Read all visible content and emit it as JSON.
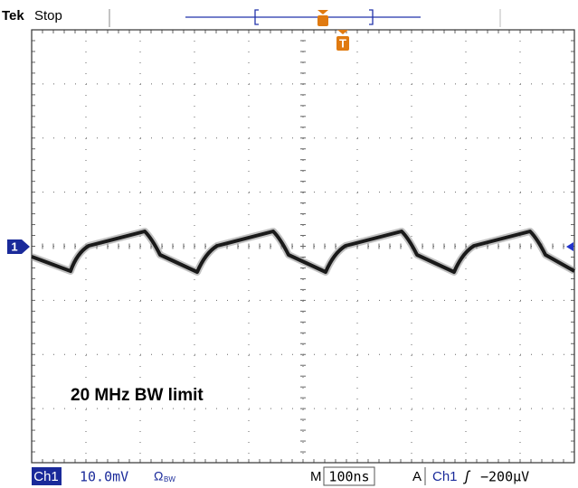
{
  "header": {
    "brand": "Tek",
    "status": "Stop",
    "trigger_marker": "T"
  },
  "channel_marker": "1",
  "annotation": "20 MHz BW limit",
  "footer": {
    "channel": "Ch1",
    "scale": "10.0mV",
    "impedance": "Ω",
    "bw_flag": "BW",
    "timebase_label": "M",
    "timebase": "100ns",
    "trigger_label": "A",
    "trigger_source": "Ch1",
    "trigger_slope": "ʃ",
    "trigger_level": "−200µV"
  }
}
